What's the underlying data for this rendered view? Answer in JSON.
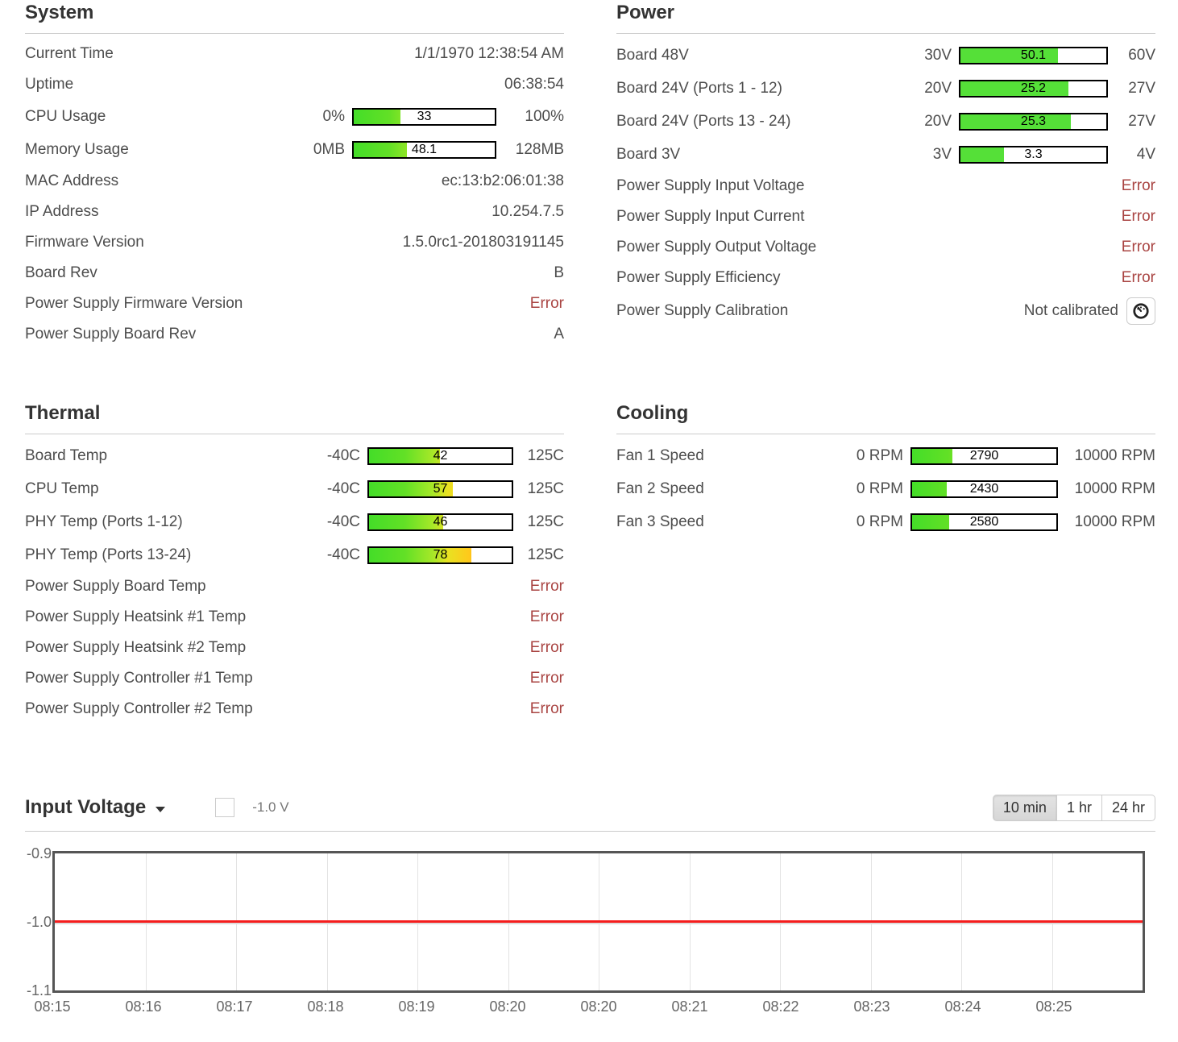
{
  "colors": {
    "bar_green": "#55e038",
    "error_red": "#a94442",
    "chart_line_red": "#f51d1d",
    "legend_red": "#ee2222"
  },
  "sections": {
    "system": {
      "title": "System",
      "rows": [
        {
          "label": "Current Time",
          "value": "1/1/1970 12:38:54 AM"
        },
        {
          "label": "Uptime",
          "value": "06:38:54"
        },
        {
          "label": "CPU Usage",
          "bar": {
            "min_label": "0%",
            "max_label": "100%",
            "min": 0,
            "max": 100,
            "value": 33,
            "display": "33",
            "style": "gradient"
          }
        },
        {
          "label": "Memory Usage",
          "bar": {
            "min_label": "0MB",
            "max_label": "128MB",
            "min": 0,
            "max": 128,
            "value": 48.1,
            "display": "48.1",
            "style": "gradient"
          }
        },
        {
          "label": "MAC Address",
          "value": "ec:13:b2:06:01:38"
        },
        {
          "label": "IP Address",
          "value": "10.254.7.5"
        },
        {
          "label": "Firmware Version",
          "value": "1.5.0rc1-201803191145"
        },
        {
          "label": "Board Rev",
          "value": "B"
        },
        {
          "label": "Power Supply Firmware Version",
          "value": "Error",
          "error": true
        },
        {
          "label": "Power Supply Board Rev",
          "value": "A"
        }
      ]
    },
    "power": {
      "title": "Power",
      "rows": [
        {
          "label": "Board 48V",
          "bar": {
            "min_label": "30V",
            "max_label": "60V",
            "min": 30,
            "max": 60,
            "value": 50.1,
            "display": "50.1",
            "style": "solid"
          }
        },
        {
          "label": "Board 24V (Ports 1 - 12)",
          "bar": {
            "min_label": "20V",
            "max_label": "27V",
            "min": 20,
            "max": 27,
            "value": 25.2,
            "display": "25.2",
            "style": "solid"
          }
        },
        {
          "label": "Board 24V (Ports 13 - 24)",
          "bar": {
            "min_label": "20V",
            "max_label": "27V",
            "min": 20,
            "max": 27,
            "value": 25.3,
            "display": "25.3",
            "style": "solid"
          }
        },
        {
          "label": "Board 3V",
          "bar": {
            "min_label": "3V",
            "max_label": "4V",
            "min": 3,
            "max": 4,
            "value": 3.3,
            "display": "3.3",
            "style": "solid"
          }
        },
        {
          "label": "Power Supply Input Voltage",
          "value": "Error",
          "error": true
        },
        {
          "label": "Power Supply Input Current",
          "value": "Error",
          "error": true
        },
        {
          "label": "Power Supply Output Voltage",
          "value": "Error",
          "error": true
        },
        {
          "label": "Power Supply Efficiency",
          "value": "Error",
          "error": true
        },
        {
          "label": "Power Supply Calibration",
          "value": "Not calibrated",
          "button": "calibrate"
        }
      ]
    },
    "thermal": {
      "title": "Thermal",
      "rows": [
        {
          "label": "Board Temp",
          "bar": {
            "min_label": "-40C",
            "max_label": "125C",
            "min": -40,
            "max": 125,
            "value": 42,
            "display": "42",
            "style": "gradient"
          }
        },
        {
          "label": "CPU Temp",
          "bar": {
            "min_label": "-40C",
            "max_label": "125C",
            "min": -40,
            "max": 125,
            "value": 57,
            "display": "57",
            "style": "gradient"
          }
        },
        {
          "label": "PHY Temp (Ports 1-12)",
          "bar": {
            "min_label": "-40C",
            "max_label": "125C",
            "min": -40,
            "max": 125,
            "value": 46,
            "display": "46",
            "style": "gradient"
          }
        },
        {
          "label": "PHY Temp (Ports 13-24)",
          "bar": {
            "min_label": "-40C",
            "max_label": "125C",
            "min": -40,
            "max": 125,
            "value": 78,
            "display": "78",
            "style": "gradient"
          }
        },
        {
          "label": "Power Supply Board Temp",
          "value": "Error",
          "error": true
        },
        {
          "label": "Power Supply Heatsink #1 Temp",
          "value": "Error",
          "error": true
        },
        {
          "label": "Power Supply Heatsink #2 Temp",
          "value": "Error",
          "error": true
        },
        {
          "label": "Power Supply Controller #1 Temp",
          "value": "Error",
          "error": true
        },
        {
          "label": "Power Supply Controller #2 Temp",
          "value": "Error",
          "error": true
        }
      ]
    },
    "cooling": {
      "title": "Cooling",
      "rows": [
        {
          "label": "Fan 1 Speed",
          "bar": {
            "min_label": "0 RPM",
            "max_label": "10000 RPM",
            "min": 0,
            "max": 10000,
            "value": 2790,
            "display": "2790",
            "style": "gradient"
          }
        },
        {
          "label": "Fan 2 Speed",
          "bar": {
            "min_label": "0 RPM",
            "max_label": "10000 RPM",
            "min": 0,
            "max": 10000,
            "value": 2430,
            "display": "2430",
            "style": "gradient"
          }
        },
        {
          "label": "Fan 3 Speed",
          "bar": {
            "min_label": "0 RPM",
            "max_label": "10000 RPM",
            "min": 0,
            "max": 10000,
            "value": 2580,
            "display": "2580",
            "style": "gradient"
          }
        }
      ]
    }
  },
  "chart": {
    "title": "Input Voltage",
    "legend": {
      "label": "-1.0 V",
      "color": "#ee2222"
    },
    "range_buttons": [
      {
        "label": "10 min",
        "active": true
      },
      {
        "label": "1 hr",
        "active": false
      },
      {
        "label": "24 hr",
        "active": false
      }
    ],
    "y_ticks": [
      "-0.9",
      "-1.0",
      "-1.1"
    ],
    "x_ticks": [
      "08:15",
      "08:16",
      "08:17",
      "08:18",
      "08:19",
      "08:20",
      "08:20",
      "08:21",
      "08:22",
      "08:23",
      "08:24",
      "08:25"
    ]
  },
  "chart_data": {
    "type": "line",
    "title": "Input Voltage",
    "x": [
      "08:15",
      "08:16",
      "08:17",
      "08:18",
      "08:19",
      "08:20",
      "08:20",
      "08:21",
      "08:22",
      "08:23",
      "08:24",
      "08:25"
    ],
    "series": [
      {
        "name": "-1.0 V",
        "color": "#ee2222",
        "values": [
          -1.0,
          -1.0,
          -1.0,
          -1.0,
          -1.0,
          -1.0,
          -1.0,
          -1.0,
          -1.0,
          -1.0,
          -1.0,
          -1.0
        ]
      }
    ],
    "xlabel": "",
    "ylabel": "",
    "ylim": [
      -1.1,
      -0.9
    ],
    "y_tick_values": [
      -0.9,
      -1.0,
      -1.1
    ],
    "grid": "vertical",
    "legend_position": "top-left"
  }
}
